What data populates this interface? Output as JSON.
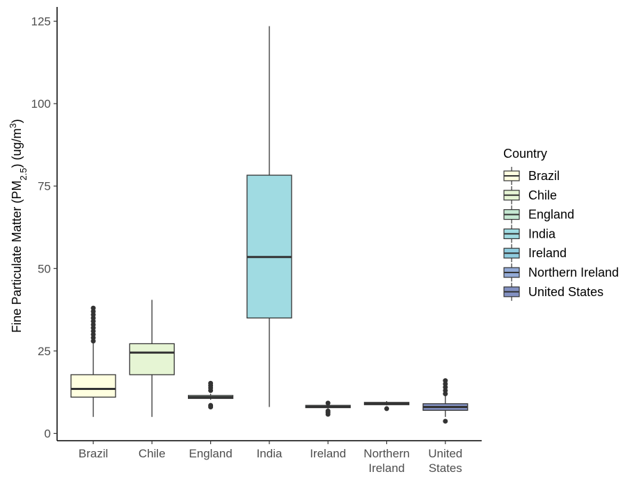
{
  "chart_data": {
    "type": "boxplot",
    "ylabel_parts": {
      "main": "Fine Particulate Matter (PM",
      "sub": "2.5",
      "mid": ") (ug/m",
      "sup": "3",
      "end": ")"
    },
    "ylim": [
      0,
      125
    ],
    "yticks": [
      0,
      25,
      50,
      75,
      100,
      125
    ],
    "legend": {
      "title": "Country",
      "position": "right"
    },
    "categories": [
      {
        "name": "Brazil",
        "label_lines": [
          "Brazil"
        ],
        "color": "#FFFFE0",
        "whisker_low": 5,
        "q1": 11,
        "median": 13.5,
        "q3": 17.8,
        "whisker_high": 27.5,
        "outliers": [
          28,
          29,
          30,
          31,
          32,
          33,
          34,
          35,
          36,
          37,
          38
        ]
      },
      {
        "name": "Chile",
        "label_lines": [
          "Chile"
        ],
        "color": "#E6F5D4",
        "whisker_low": 5,
        "q1": 17.8,
        "median": 24.5,
        "q3": 27.2,
        "whisker_high": 40.5,
        "outliers": []
      },
      {
        "name": "England",
        "label_lines": [
          "England"
        ],
        "color": "#C6E9D3",
        "whisker_low": 10.2,
        "q1": 10.6,
        "median": 11,
        "q3": 11.5,
        "whisker_high": 12,
        "outliers": [
          8,
          8.5,
          13,
          13.8,
          14.5,
          15.2
        ]
      },
      {
        "name": "India",
        "label_lines": [
          "India"
        ],
        "color": "#A0DBE2",
        "whisker_low": 8,
        "q1": 35,
        "median": 53.5,
        "q3": 78.3,
        "whisker_high": 123.5,
        "outliers": []
      },
      {
        "name": "Ireland",
        "label_lines": [
          "Ireland"
        ],
        "color": "#8FCCDF",
        "whisker_low": 7.5,
        "q1": 7.8,
        "median": 8.1,
        "q3": 8.5,
        "whisker_high": 8.8,
        "outliers": [
          5.8,
          6.3,
          6.8,
          9.2
        ]
      },
      {
        "name": "Northern Ireland",
        "label_lines": [
          "Northern",
          "Ireland"
        ],
        "color": "#93AAD6",
        "whisker_low": 8.5,
        "q1": 8.7,
        "median": 9,
        "q3": 9.4,
        "whisker_high": 9.8,
        "outliers": [
          7.5
        ]
      },
      {
        "name": "United States",
        "label_lines": [
          "United",
          "States"
        ],
        "color": "#8391C2",
        "whisker_low": 5,
        "q1": 7,
        "median": 8,
        "q3": 9,
        "whisker_high": 11.5,
        "outliers": [
          3.7,
          12,
          13,
          14,
          15,
          16
        ]
      }
    ]
  }
}
